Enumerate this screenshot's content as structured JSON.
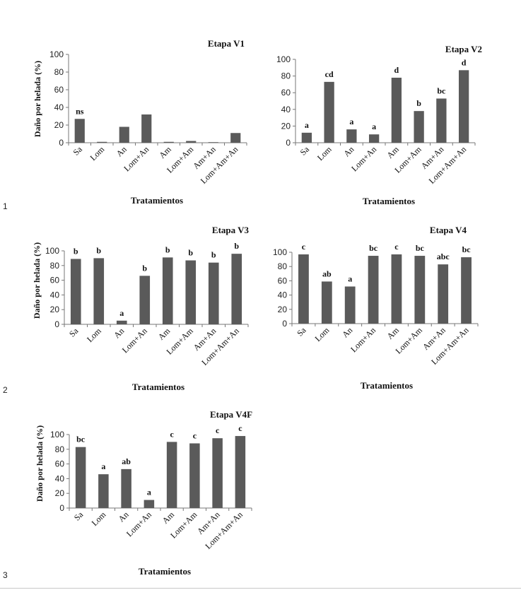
{
  "figure_numbers": [
    "1",
    "2",
    "3"
  ],
  "chart_data": [
    {
      "type": "bar",
      "title": "Etapa V1",
      "xlabel": "Tratamientos",
      "ylabel": "Daño por helada (%)",
      "categories": [
        "Sa",
        "Lom",
        "An",
        "Lom+An",
        "Am",
        "Lom+Am",
        "Am+An",
        "Lom+Am+An"
      ],
      "values": [
        27,
        1,
        18,
        32,
        1,
        2,
        0,
        11
      ],
      "data_labels": [
        "ns",
        "",
        "",
        "",
        "",
        "",
        "",
        ""
      ],
      "ylim": [
        0,
        100
      ],
      "yticks": [
        0,
        20,
        40,
        60,
        80,
        100
      ],
      "bar_color": "#5a5a5a"
    },
    {
      "type": "bar",
      "title": "Etapa V2",
      "xlabel": "Tratamientos",
      "ylabel": "",
      "categories": [
        "Sa",
        "Lom",
        "An",
        "Lom+An",
        "Am",
        "Lom+Am",
        "Am+An",
        "Lom+Am+An"
      ],
      "values": [
        12,
        73,
        16,
        10,
        78,
        38,
        53,
        87
      ],
      "data_labels": [
        "a",
        "cd",
        "a",
        "a",
        "d",
        "b",
        "bc",
        "d"
      ],
      "ylim": [
        0,
        100
      ],
      "yticks": [
        0,
        20,
        40,
        60,
        80,
        100
      ],
      "bar_color": "#5a5a5a"
    },
    {
      "type": "bar",
      "title": "Etapa V3",
      "xlabel": "Tratamientos",
      "ylabel": "Daño por helada (%)",
      "categories": [
        "Sa",
        "Lom",
        "An",
        "Lom+An",
        "Am",
        "Lom+Am",
        "Am+An",
        "Lom+Am+An"
      ],
      "values": [
        89,
        90,
        5,
        66,
        91,
        87,
        84,
        96
      ],
      "data_labels": [
        "b",
        "b",
        "a",
        "b",
        "b",
        "b",
        "b",
        "b"
      ],
      "ylim": [
        0,
        100
      ],
      "yticks": [
        0,
        20,
        40,
        60,
        80,
        100
      ],
      "bar_color": "#5a5a5a"
    },
    {
      "type": "bar",
      "title": "Etapa V4",
      "xlabel": "Tratamientos",
      "ylabel": "",
      "categories": [
        "Sa",
        "Lom",
        "An",
        "Lom+An",
        "Am",
        "Lom+Am",
        "Am+An",
        "Lom+Am+An"
      ],
      "values": [
        97,
        59,
        52,
        95,
        97,
        95,
        83,
        93
      ],
      "data_labels": [
        "c",
        "ab",
        "a",
        "bc",
        "c",
        "bc",
        "abc",
        "bc"
      ],
      "ylim": [
        0,
        100
      ],
      "yticks": [
        0,
        20,
        40,
        60,
        80,
        100
      ],
      "bar_color": "#5a5a5a"
    },
    {
      "type": "bar",
      "title": "Etapa V4F",
      "xlabel": "Tratamientos",
      "ylabel": "Daño por helada (%)",
      "categories": [
        "Sa",
        "Lom",
        "An",
        "Lom+An",
        "Am",
        "Lom+Am",
        "Am+An",
        "Lom+Am+An"
      ],
      "values": [
        83,
        46,
        53,
        11,
        90,
        88,
        95,
        98
      ],
      "data_labels": [
        "bc",
        "a",
        "ab",
        "a",
        "c",
        "c",
        "c",
        "c"
      ],
      "ylim": [
        0,
        100
      ],
      "yticks": [
        0,
        20,
        40,
        60,
        80,
        100
      ],
      "bar_color": "#5a5a5a"
    }
  ]
}
